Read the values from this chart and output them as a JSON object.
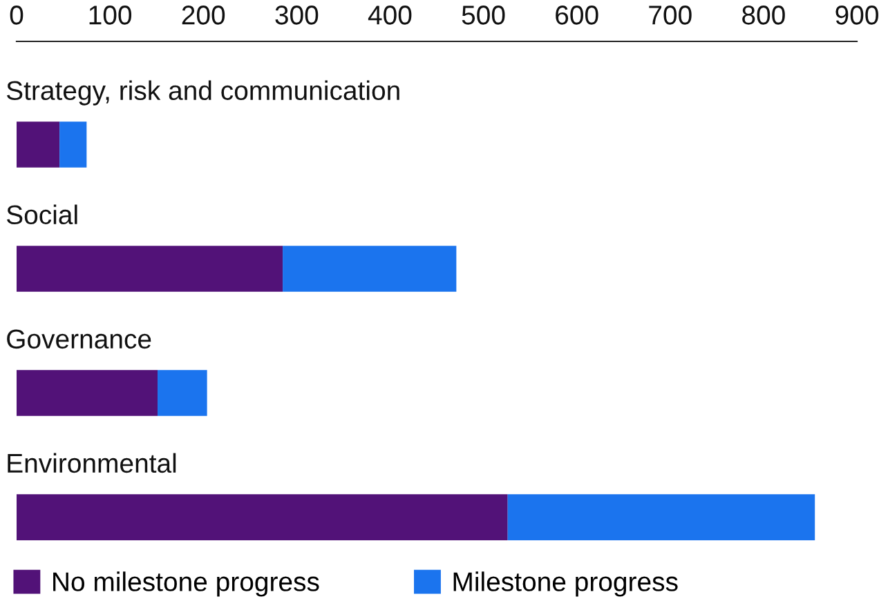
{
  "chart_data": {
    "type": "bar",
    "orientation": "horizontal",
    "stacked": true,
    "categories": [
      "Strategy, risk and communication",
      "Social",
      "Governance",
      "Environmental"
    ],
    "series": [
      {
        "name": "No milestone progress",
        "color": "#521278",
        "values": [
          46,
          285,
          151,
          526
        ]
      },
      {
        "name": "Milestone progress",
        "color": "#1b74ee",
        "values": [
          29,
          186,
          53,
          329
        ]
      }
    ],
    "xlim": [
      0,
      900
    ],
    "xticks": [
      0,
      100,
      200,
      300,
      400,
      500,
      600,
      700,
      800,
      900
    ],
    "legend": "bottom left",
    "grid": false
  }
}
